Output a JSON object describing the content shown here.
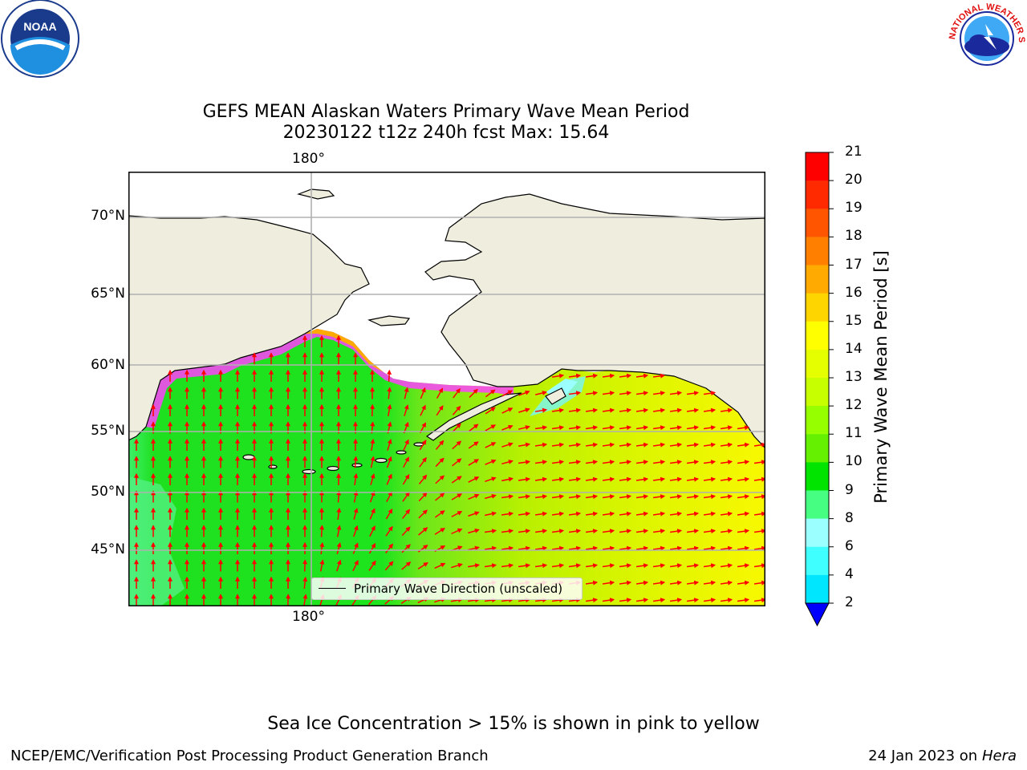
{
  "header": {
    "title_line1": "GEFS MEAN Alaskan Waters Primary Wave Mean Period",
    "title_line2": "20230122 t12z 240h fcst   Max: 15.64"
  },
  "logos": {
    "noaa_text": "NOAA",
    "nws_text": "NATIONAL WEATHER SERVICE"
  },
  "map": {
    "lat_labels": [
      "70°N",
      "65°N",
      "60°N",
      "55°N",
      "50°N",
      "45°N"
    ],
    "lon_label_top": "180°",
    "lon_label_bottom": "180°",
    "legend_label": "Primary Wave Direction (unscaled)",
    "colors": {
      "land": "#efedde",
      "ocean_low": "#1be01b",
      "ocean_high": "#f5f500",
      "arrow": "#ff0000",
      "ice": "#ff40ff"
    }
  },
  "colorbar": {
    "label": "Primary Wave Mean Period [s]",
    "ticks": [
      "21",
      "20",
      "19",
      "18",
      "17",
      "16",
      "15",
      "14",
      "13",
      "12",
      "11",
      "10",
      "9",
      "8",
      "6",
      "4",
      "2"
    ],
    "colors": [
      "#ff0000",
      "#ff2a00",
      "#ff5500",
      "#ff8000",
      "#ffaa00",
      "#ffd500",
      "#ffff00",
      "#e6ff00",
      "#c8ff00",
      "#96ff00",
      "#64f000",
      "#00e400",
      "#46ff82",
      "#9bffff",
      "#40ffff",
      "#00e6ff",
      "#0090ff",
      "#0055ff"
    ],
    "extend_color": "#0000ff"
  },
  "footer": {
    "note": "Sea Ice Concentration > 15% is shown in pink to yellow",
    "left": "NCEP/EMC/Verification Post Processing Product Generation Branch",
    "right_date": "24 Jan 2023 on ",
    "right_machine": "Hera"
  }
}
